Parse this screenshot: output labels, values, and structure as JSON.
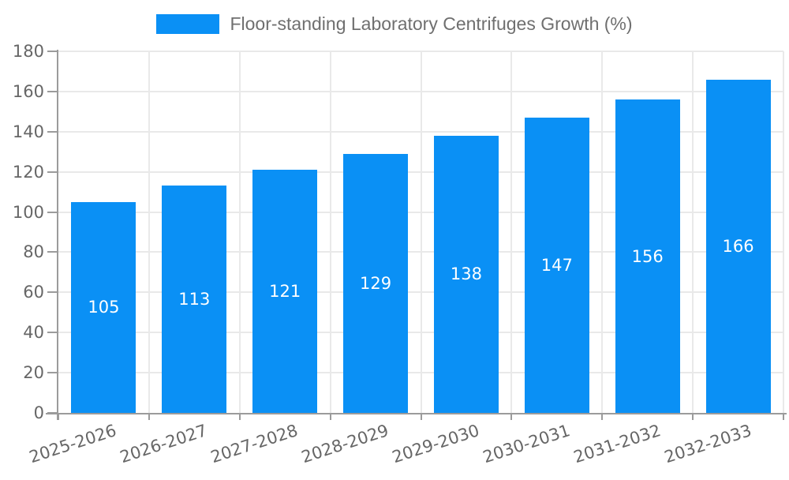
{
  "chart_data": {
    "type": "bar",
    "title": "Floor-standing Laboratory Centrifuges Growth (%)",
    "categories": [
      "2025-2026",
      "2026-2027",
      "2027-2028",
      "2028-2029",
      "2029-2030",
      "2030-2031",
      "2031-2032",
      "2032-2033"
    ],
    "values": [
      105,
      113,
      121,
      129,
      138,
      147,
      156,
      166
    ],
    "xlabel": "",
    "ylabel": "",
    "ylim": [
      0,
      180
    ],
    "ytick_step": 20,
    "ytick_labels": [
      "0",
      "20",
      "40",
      "60",
      "80",
      "100",
      "120",
      "140",
      "160",
      "180"
    ],
    "grid": true,
    "legend_position": "top-center",
    "value_labels": "centered-inside-bars"
  },
  "colors": {
    "bar": "#0a90f5",
    "value_label": "#ffffff",
    "gridline": "#e9e9e9",
    "axis": "#9b9b9b",
    "tick_label": "#666666",
    "legend_text": "#6f6f6f",
    "background": "#ffffff"
  }
}
